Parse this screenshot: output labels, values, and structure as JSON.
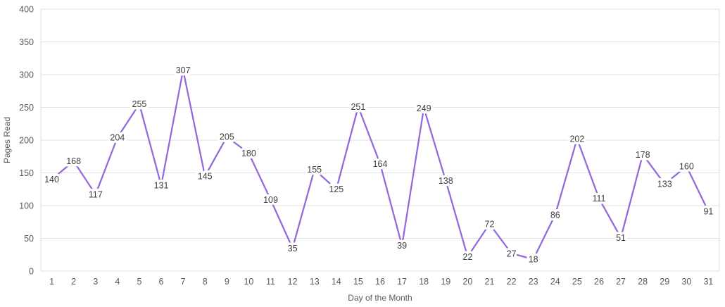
{
  "chart_data": {
    "type": "line",
    "title": "",
    "xlabel": "Day of the Month",
    "ylabel": "Pages Read",
    "x": [
      1,
      2,
      3,
      4,
      5,
      6,
      7,
      8,
      9,
      10,
      11,
      12,
      13,
      14,
      15,
      16,
      17,
      18,
      19,
      20,
      21,
      22,
      23,
      24,
      25,
      26,
      27,
      28,
      29,
      30,
      31
    ],
    "values": [
      140,
      168,
      117,
      204,
      255,
      131,
      307,
      145,
      205,
      180,
      109,
      35,
      155,
      125,
      251,
      164,
      39,
      249,
      138,
      22,
      72,
      27,
      18,
      86,
      202,
      111,
      51,
      178,
      133,
      160,
      91
    ],
    "ylim": [
      0,
      400
    ],
    "yticks": [
      0,
      50,
      100,
      150,
      200,
      250,
      300,
      350,
      400
    ],
    "grid": true,
    "legend": false,
    "data_labels": true,
    "data_label_position": "centered-on-point-with-white-halo",
    "colors": {
      "line": "#9468DB",
      "data_label_text": "#3d3d3d",
      "tick_text": "#595959",
      "grid": "#e2e2e2",
      "background": "#ffffff"
    }
  }
}
